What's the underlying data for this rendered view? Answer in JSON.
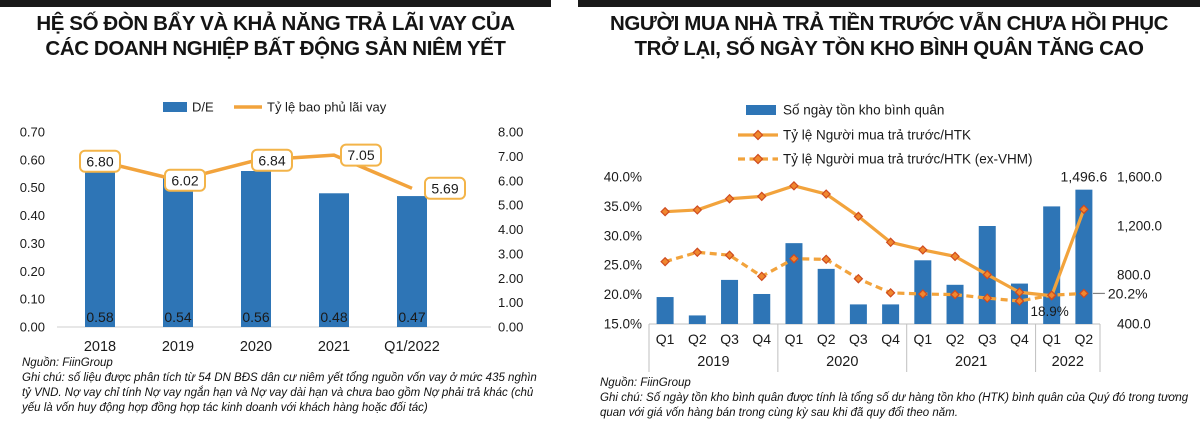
{
  "colors": {
    "bar_blue": "#2e75b6",
    "line_orange": "#f2a33c",
    "marker_fill": "#f0872e",
    "marker_stroke": "#cf4b20",
    "label_box_border": "#f3b449",
    "axis_line": "#bfbfbf",
    "leader_gray": "#808080",
    "text": "#111111",
    "title_rule": "#1a1a1a"
  },
  "left_panel": {
    "title": "HỆ SỐ ĐÒN BẨY VÀ KHẢ NĂNG TRẢ LÃI VAY CỦA\nCÁC DOANH NGHIỆP BẤT ĐỘNG SẢN NIÊM YẾT",
    "source": "Nguồn: FiinGroup",
    "note": "Ghi chú: số liệu được phân tích từ 54 DN BĐS dân cư niêm yết tổng nguồn vốn vay ở mức 435 nghìn tỷ VND. Nợ vay chỉ tính Nợ vay ngắn hạn và Nợ vay dài hạn và chưa bao gồm Nợ phải trả khác (chủ yếu là vốn huy động hợp đồng hợp tác kinh doanh với khách hàng hoặc đối tác)"
  },
  "right_panel": {
    "title": "NGƯỜI MUA NHÀ TRẢ TIỀN TRƯỚC VẪN CHƯA HỒI PHỤC\nTRỞ LẠI, SỐ NGÀY TỒN KHO BÌNH QUÂN TĂNG CAO",
    "source": "Nguồn: FiinGroup",
    "note": "Ghi chú: Số ngày tồn kho bình quân được tính là tổng số dư hàng tồn kho (HTK) bình quân của Quý đó trong tương quan với giá vốn hàng bán trong cùng kỳ sau khi đã quy đổi theo năm."
  },
  "chart_data": [
    {
      "type": "bar+line",
      "title": "Hệ số đòn bẩy và khả năng trả lãi vay",
      "categories": [
        "2018",
        "2019",
        "2020",
        "2021",
        "Q1/2022"
      ],
      "series": [
        {
          "name": "D/E",
          "type": "bar",
          "axis": "left",
          "values": [
            0.58,
            0.54,
            0.56,
            0.48,
            0.47
          ]
        },
        {
          "name": "Tỷ lệ bao phủ lãi vay",
          "type": "line",
          "axis": "right",
          "values": [
            6.8,
            6.02,
            6.84,
            7.05,
            5.69
          ]
        }
      ],
      "left_axis": {
        "min": 0,
        "max": 0.7,
        "step": 0.1,
        "ticks": [
          "0.70",
          "0.60",
          "0.50",
          "0.40",
          "0.30",
          "0.20",
          "0.10",
          "0.00"
        ]
      },
      "right_axis": {
        "min": 0,
        "max": 8.0,
        "step": 1.0,
        "ticks": [
          "8.00",
          "7.00",
          "6.00",
          "5.00",
          "4.00",
          "3.00",
          "2.00",
          "1.00",
          "0.00"
        ]
      },
      "legend_position": "top",
      "grid": false
    },
    {
      "type": "bar+line",
      "title": "Số ngày tồn kho bình quân và tỷ lệ người mua trả trước",
      "categories": [
        "Q1",
        "Q2",
        "Q3",
        "Q4",
        "Q1",
        "Q2",
        "Q3",
        "Q4",
        "Q1",
        "Q2",
        "Q3",
        "Q4",
        "Q1",
        "Q2"
      ],
      "year_groups": [
        {
          "label": "2019",
          "span": 4
        },
        {
          "label": "2020",
          "span": 4
        },
        {
          "label": "2021",
          "span": 4
        },
        {
          "label": "2022",
          "span": 2
        }
      ],
      "series": [
        {
          "name": "Số ngày tồn kho bình quân",
          "type": "bar",
          "axis": "right",
          "values": [
            620,
            470,
            760,
            645,
            1060,
            850,
            560,
            560,
            920,
            720,
            1200,
            730,
            1360,
            1496.6
          ]
        },
        {
          "name": "Tỷ lệ Người mua trả trước/HTK",
          "type": "line",
          "style": "solid",
          "axis": "left",
          "values": [
            34.1,
            34.4,
            36.3,
            36.7,
            38.5,
            37.1,
            33.3,
            28.9,
            27.6,
            26.5,
            23.4,
            20.4,
            19.8,
            34.5
          ]
        },
        {
          "name": "Tỷ lệ Người mua trả trước/HTK (ex-VHM)",
          "type": "line",
          "style": "dashed",
          "axis": "left",
          "values": [
            25.6,
            27.2,
            26.7,
            23.1,
            26.1,
            26.0,
            22.7,
            20.3,
            20.1,
            20.0,
            19.4,
            18.9,
            19.9,
            20.2
          ]
        }
      ],
      "left_axis": {
        "min": 15,
        "max": 40,
        "unit": "%",
        "ticks": [
          "40.0%",
          "35.0%",
          "30.0%",
          "25.0%",
          "20.0%",
          "15.0%"
        ]
      },
      "right_axis": {
        "min": 400,
        "max": 1600,
        "ticks": [
          "1,600.0",
          "1,200.0",
          "800.0",
          "400.0"
        ]
      },
      "annotations": [
        {
          "text": "1,496.6",
          "series": 0,
          "index": 13,
          "kind": "bar-top"
        },
        {
          "text": "18.9%",
          "series": 2,
          "index": 11,
          "kind": "below-right"
        },
        {
          "text": "20.2%",
          "series": 2,
          "index": 13,
          "kind": "leader-right"
        }
      ],
      "legend_position": "top",
      "grid": false
    }
  ]
}
